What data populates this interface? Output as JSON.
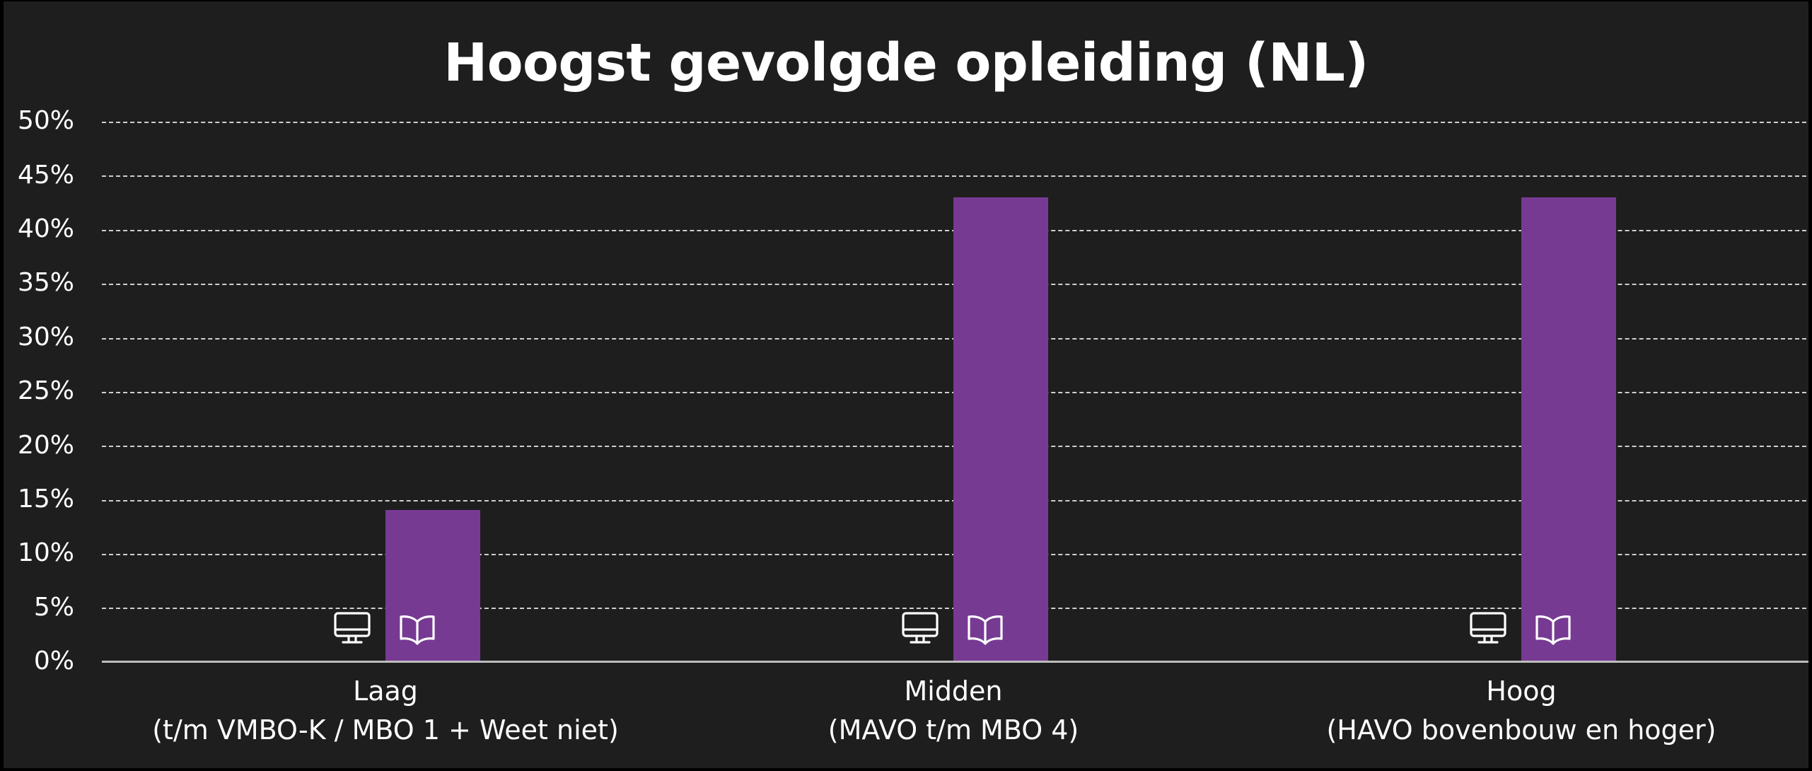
{
  "title": "Hoogst gevolgde opleiding (NL)",
  "colors": {
    "background": "#1e1e1e",
    "bar": "#773a93",
    "text": "#ffffff",
    "grid": "#cfcfcf"
  },
  "y_axis": {
    "ticks": [
      "0%",
      "5%",
      "10%",
      "15%",
      "20%",
      "25%",
      "30%",
      "35%",
      "40%",
      "45%",
      "50%"
    ]
  },
  "categories": [
    {
      "label": "Laag",
      "sublabel": "(t/m VMBO-K / MBO 1 + Weet niet)",
      "value": 14,
      "icons": [
        "monitor-icon",
        "open-book-icon"
      ]
    },
    {
      "label": "Midden",
      "sublabel": "(MAVO t/m MBO 4)",
      "value": 43,
      "icons": [
        "monitor-icon",
        "open-book-icon"
      ]
    },
    {
      "label": "Hoog",
      "sublabel": "(HAVO bovenbouw en hoger)",
      "value": 43,
      "icons": [
        "monitor-icon",
        "open-book-icon"
      ]
    }
  ],
  "chart_data": {
    "type": "bar",
    "title": "Hoogst gevolgde opleiding (NL)",
    "categories": [
      "Laag (t/m VMBO-K / MBO 1 + Weet niet)",
      "Midden (MAVO t/m MBO 4)",
      "Hoog (HAVO bovenbouw en hoger)"
    ],
    "values": [
      14,
      43,
      43
    ],
    "unit": "%",
    "xlabel": "",
    "ylabel": "",
    "ylim": [
      0,
      50
    ],
    "yticks": [
      0,
      5,
      10,
      15,
      20,
      25,
      30,
      35,
      40,
      45,
      50
    ],
    "grid": "horizontal dashed",
    "legend": "none"
  }
}
